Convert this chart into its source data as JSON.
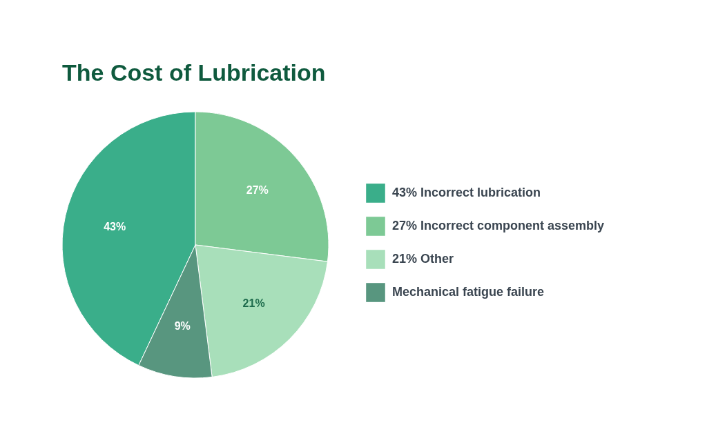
{
  "chart_data": {
    "type": "pie",
    "title": "The Cost of Lubrication",
    "categories": [
      "43% Incorrect lubrication",
      "27% Incorrect component assembly",
      "21% Other",
      "Mechanical fatigue failure"
    ],
    "values": [
      43,
      27,
      21,
      9
    ],
    "colors": [
      "#3aae8a",
      "#7dc995",
      "#a8dfba",
      "#58967f"
    ],
    "value_labels": [
      "43%",
      "27%",
      "21%",
      "9%"
    ],
    "legend": "right"
  }
}
